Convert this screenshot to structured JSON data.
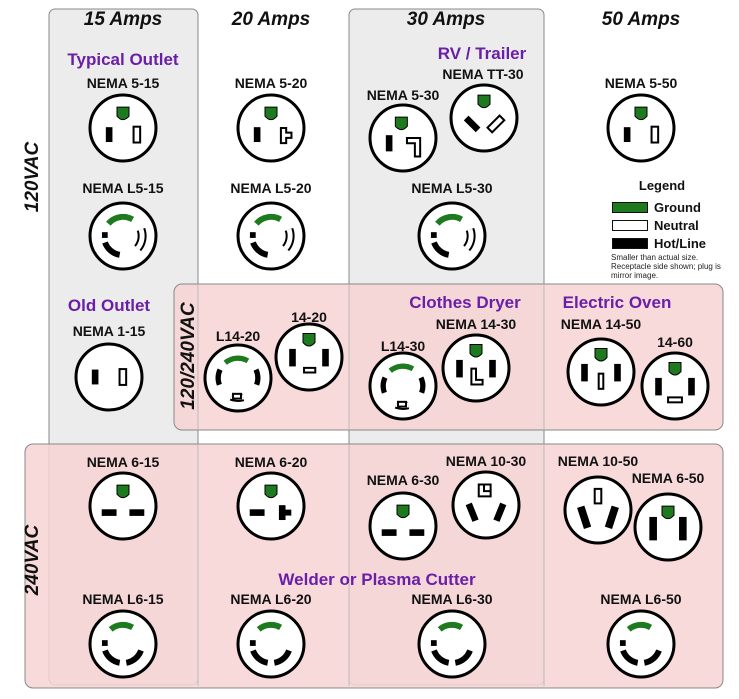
{
  "amp_headers": [
    "15 Amps",
    "20 Amps",
    "30 Amps",
    "50 Amps"
  ],
  "voltage_labels": {
    "v120": "120VAC",
    "v120_240": "120/240VAC",
    "v240": "240VAC"
  },
  "use_labels": {
    "typical_outlet": "Typical Outlet",
    "rv_trailer": "RV / Trailer",
    "old_outlet": "Old Outlet",
    "clothes_dryer": "Clothes Dryer",
    "electric_oven": "Electric Oven",
    "welder": "Welder or Plasma Cutter"
  },
  "legend": {
    "title": "Legend",
    "ground": "Ground",
    "neutral": "Neutral",
    "hot": "Hot/Line",
    "note": "Smaller than actual size. Receptacle side shown; plug is mirror image."
  },
  "colors": {
    "ground": "#1e7a1e",
    "hot": "#000000",
    "neutral": "#ffffff",
    "box_120": "#ededed",
    "box_240": "#f9d6d6",
    "use_text": "#6a1fa8"
  },
  "receptacles": [
    {
      "name": "NEMA 5-15"
    },
    {
      "name": "NEMA L5-15"
    },
    {
      "name": "NEMA 1-15"
    },
    {
      "name": "NEMA 6-15"
    },
    {
      "name": "NEMA L6-15"
    },
    {
      "name": "NEMA 5-20"
    },
    {
      "name": "NEMA L5-20"
    },
    {
      "name": "L14-20"
    },
    {
      "name": "14-20"
    },
    {
      "name": "NEMA 6-20"
    },
    {
      "name": "NEMA L6-20"
    },
    {
      "name": "NEMA TT-30"
    },
    {
      "name": "NEMA 5-30"
    },
    {
      "name": "NEMA L5-30"
    },
    {
      "name": "NEMA 14-30"
    },
    {
      "name": "L14-30"
    },
    {
      "name": "NEMA 10-30"
    },
    {
      "name": "NEMA 6-30"
    },
    {
      "name": "NEMA L6-30"
    },
    {
      "name": "NEMA 5-50"
    },
    {
      "name": "NEMA 14-50"
    },
    {
      "name": "14-60"
    },
    {
      "name": "NEMA 10-50"
    },
    {
      "name": "NEMA 6-50"
    },
    {
      "name": "NEMA L6-50"
    }
  ]
}
